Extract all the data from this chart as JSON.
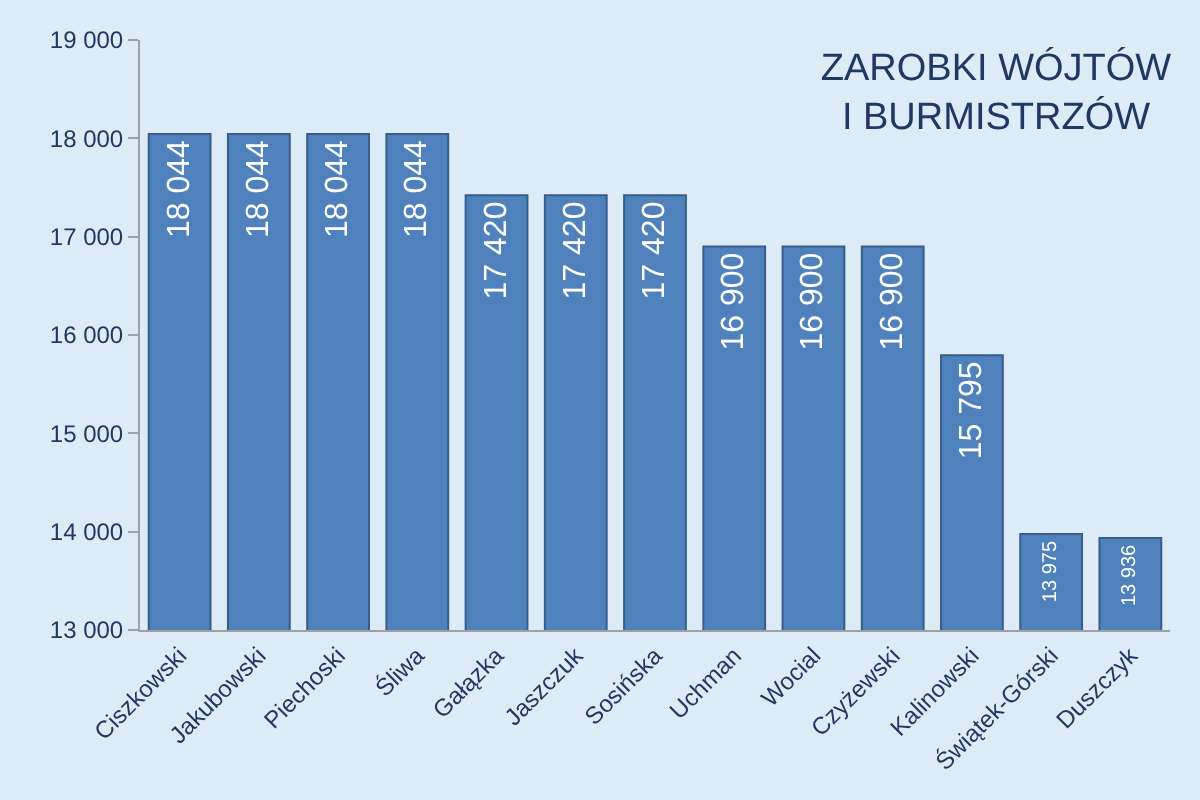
{
  "chart_data": {
    "type": "bar",
    "title": "ZAROBKI WÓJTÓW\nI BURMISTRZÓW",
    "categories": [
      "Ciszkowski",
      "Jakubowski",
      "Piechoski",
      "Śliwa",
      "Gałązka",
      "Jaszczuk",
      "Sosińska",
      "Uchman",
      "Wocial",
      "Czyżewski",
      "Kalinowski",
      "Świątek-Górski",
      "Duszczyk"
    ],
    "values": [
      18044,
      18044,
      18044,
      18044,
      17420,
      17420,
      17420,
      16900,
      16900,
      16900,
      15795,
      13975,
      13936
    ],
    "value_labels": [
      "18 044",
      "18 044",
      "18 044",
      "18 044",
      "17 420",
      "17 420",
      "17 420",
      "16 900",
      "16 900",
      "16 900",
      "15 795",
      "13 975",
      "13 936"
    ],
    "color": "#4f81bd",
    "ylim": [
      13000,
      19000
    ],
    "yticks": [
      {
        "value": 13000,
        "label": "13 000"
      },
      {
        "value": 14000,
        "label": "14 000"
      },
      {
        "value": 15000,
        "label": "15 000"
      },
      {
        "value": 16000,
        "label": "16 000"
      },
      {
        "value": 17000,
        "label": "17 000"
      },
      {
        "value": 18000,
        "label": "18 000"
      },
      {
        "value": 19000,
        "label": "19 000"
      }
    ],
    "grid": false
  }
}
